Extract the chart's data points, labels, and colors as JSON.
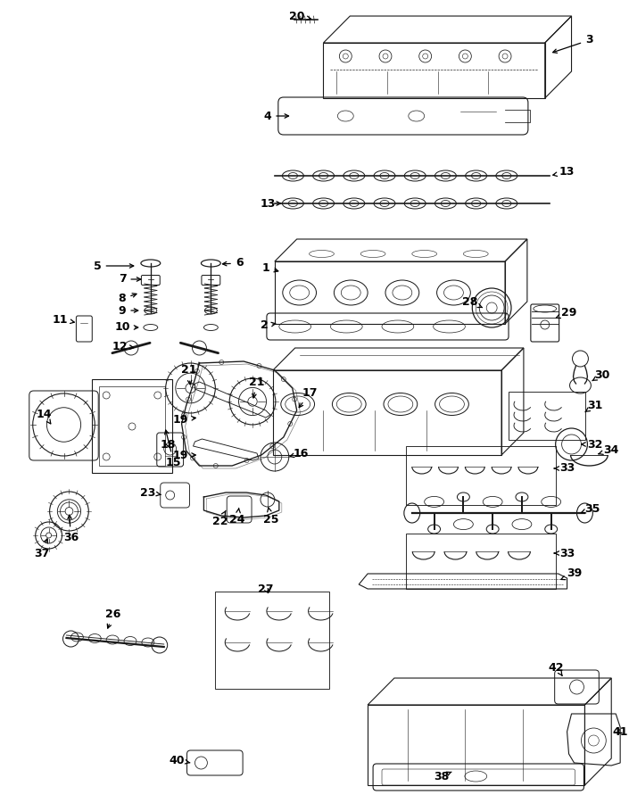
{
  "bg": "#ffffff",
  "lc": "#1a1a1a",
  "lw": 0.8,
  "fig_w": 7.05,
  "fig_h": 9.0,
  "dpi": 100
}
